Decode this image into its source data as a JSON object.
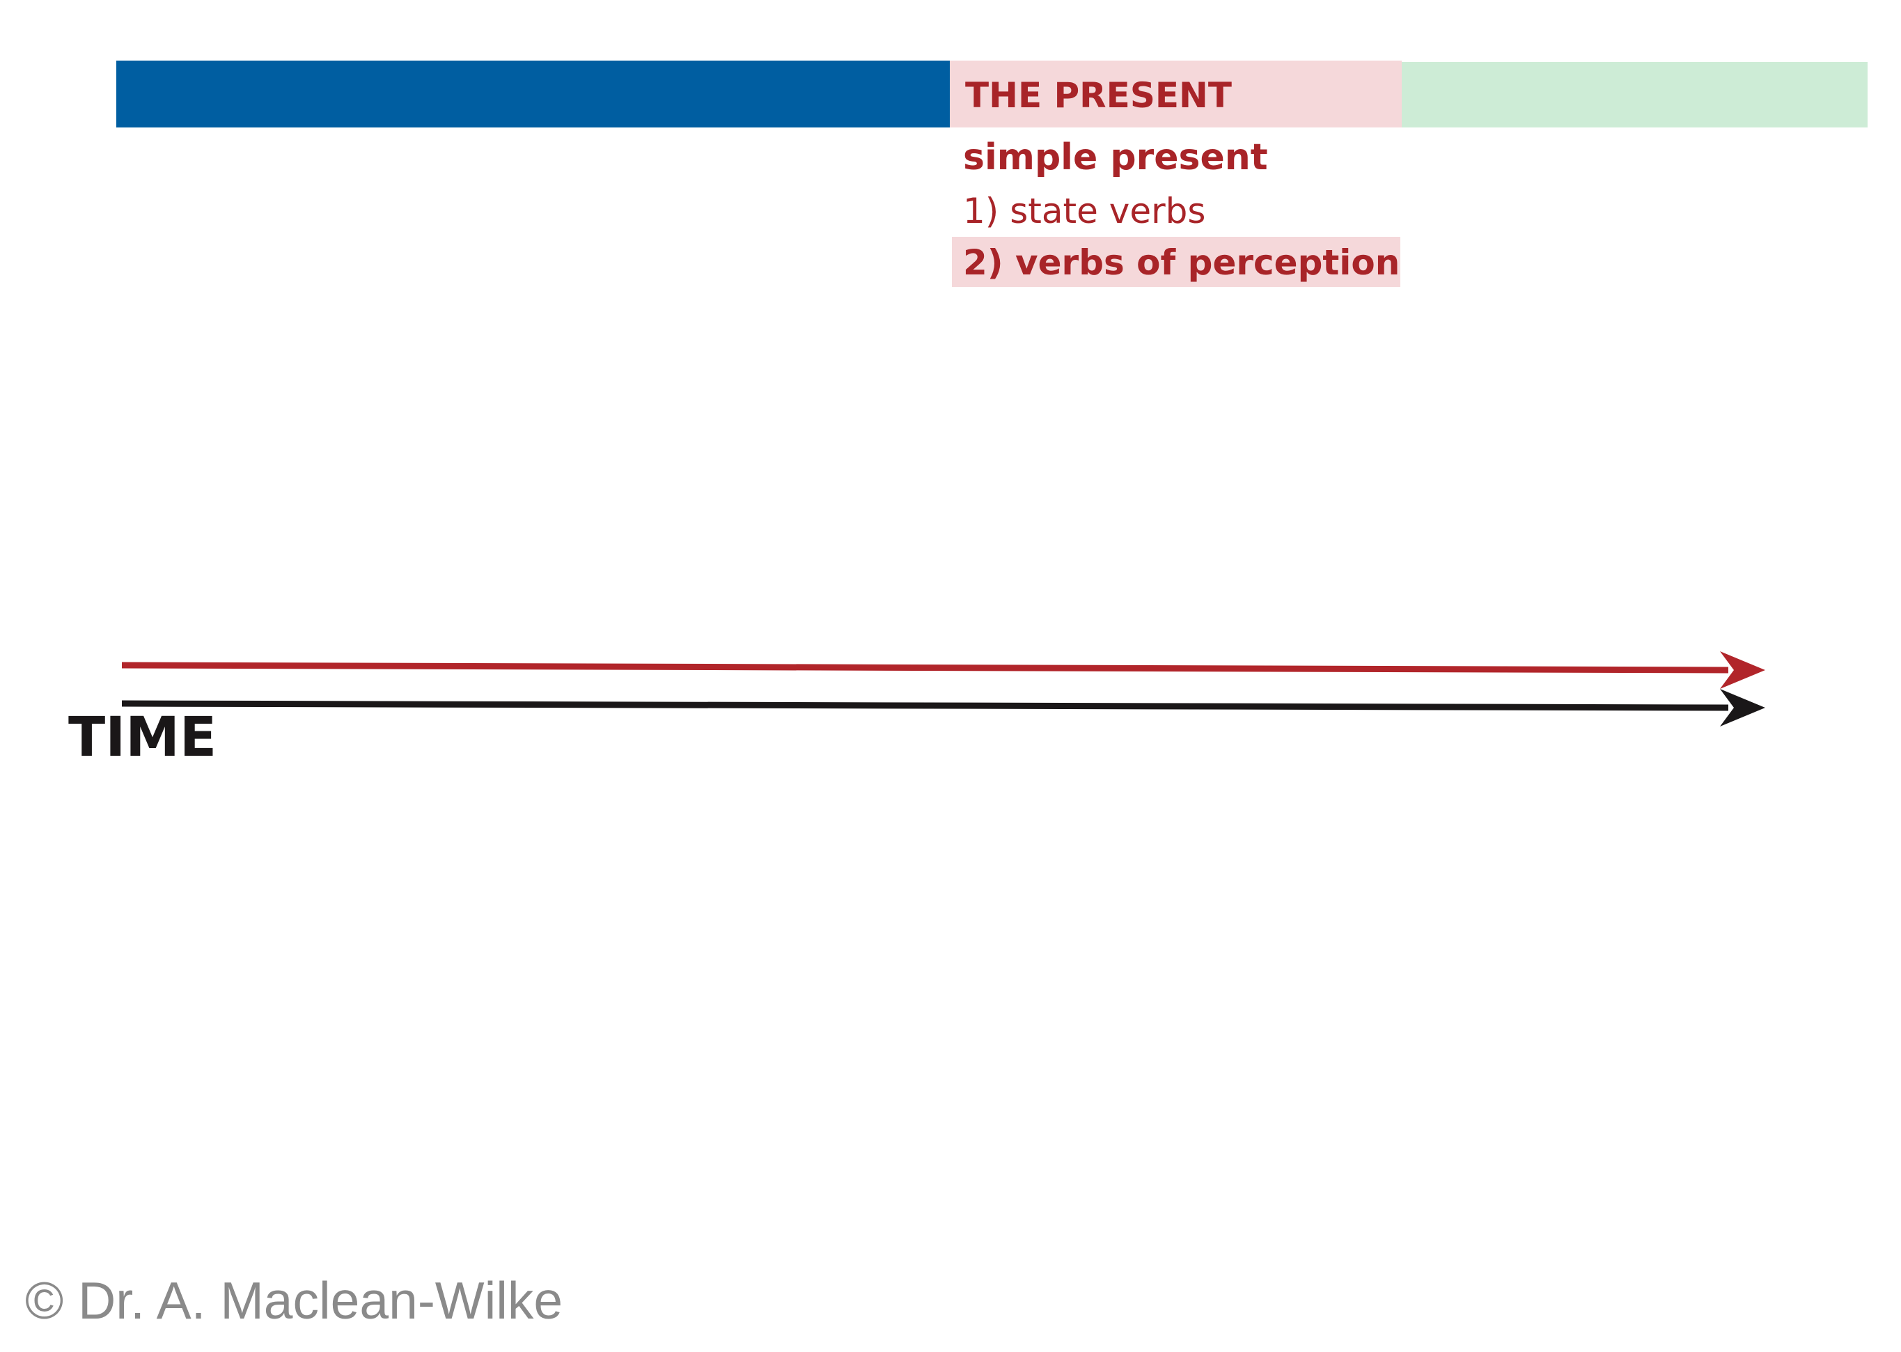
{
  "colors": {
    "past_band": "#005ea1",
    "present_band": "#f5d8da",
    "future_band": "#cdecd6",
    "present_text": "#a82428",
    "present_arrow": "#b1252a",
    "time_arrow": "#1a1718",
    "time_text": "#1a1718",
    "copyright_text": "#8a8a8a"
  },
  "present": {
    "title": "THE PRESENT",
    "subtitle": "simple present",
    "items": [
      "1) state verbs",
      "2) verbs of perception"
    ],
    "highlighted_item": "2) verbs of perception"
  },
  "time": {
    "label": "TIME"
  },
  "footer": {
    "copyright": "© Dr. A. Maclean-Wilke"
  }
}
